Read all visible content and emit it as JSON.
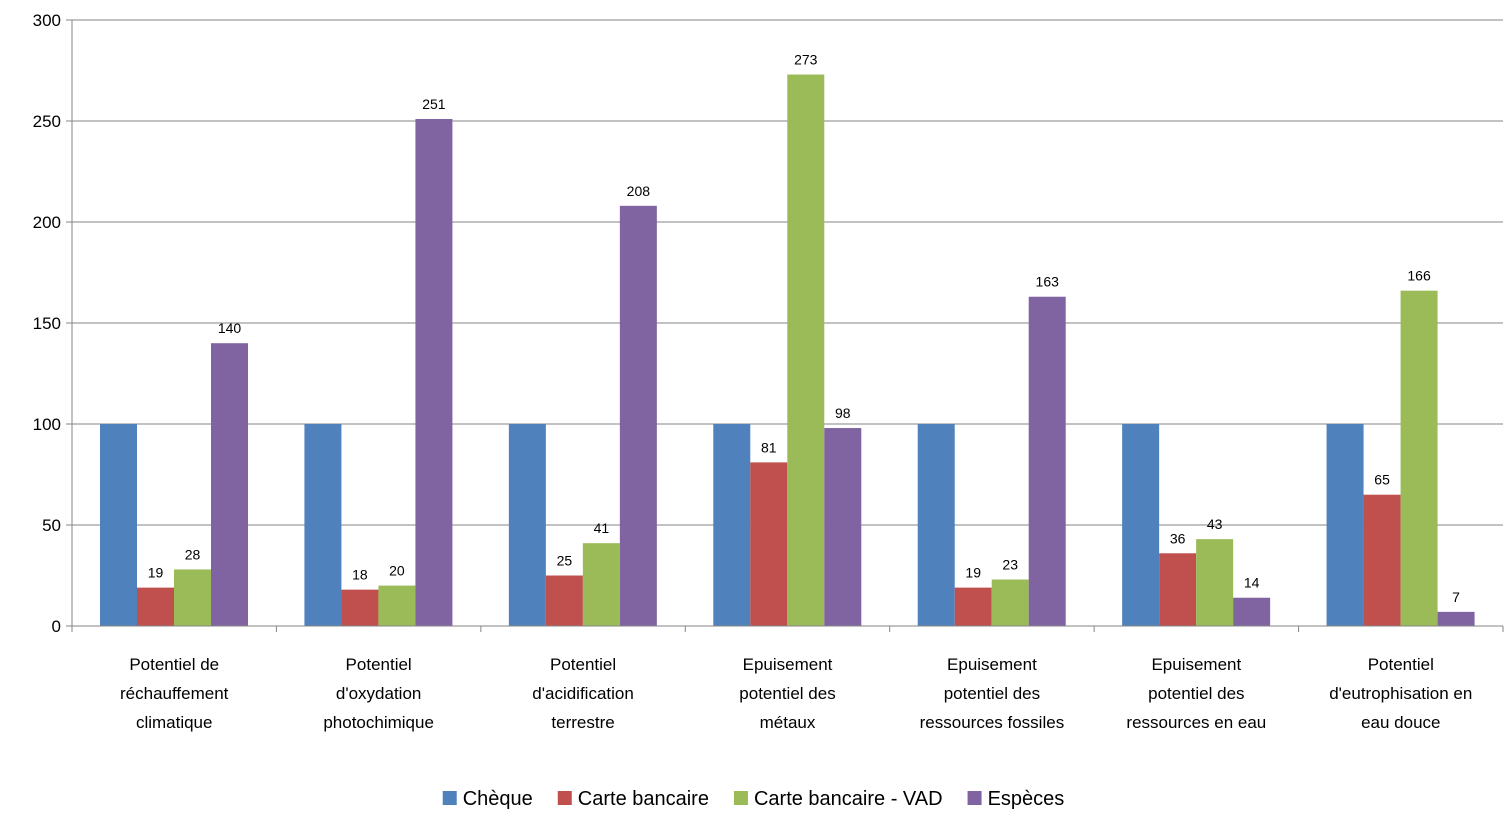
{
  "chart_data": {
    "type": "bar",
    "title": "",
    "xlabel": "",
    "ylabel": "",
    "ylim": [
      0,
      300
    ],
    "yticks": [
      0,
      50,
      100,
      150,
      200,
      250,
      300
    ],
    "grid": true,
    "legend_position": "bottom",
    "categories": [
      [
        "Potentiel de",
        "réchauffement",
        "climatique"
      ],
      [
        "Potentiel",
        "d'oxydation",
        "photochimique"
      ],
      [
        "Potentiel",
        "d'acidification",
        "terrestre"
      ],
      [
        "Epuisement",
        "potentiel des",
        "métaux"
      ],
      [
        "Epuisement",
        "potentiel des",
        "ressources fossiles"
      ],
      [
        "Epuisement",
        "potentiel des",
        "ressources en eau"
      ],
      [
        "Potentiel",
        "d'eutrophisation en",
        "eau douce"
      ]
    ],
    "series": [
      {
        "name": "Chèque",
        "color": "#4F81BD",
        "values": [
          100,
          100,
          100,
          100,
          100,
          100,
          100
        ],
        "show_labels": false
      },
      {
        "name": "Carte bancaire",
        "color": "#C0504D",
        "values": [
          19,
          18,
          25,
          81,
          19,
          36,
          65
        ],
        "show_labels": true
      },
      {
        "name": "Carte bancaire - VAD",
        "color": "#9BBB59",
        "values": [
          28,
          20,
          41,
          273,
          23,
          43,
          166
        ],
        "show_labels": true
      },
      {
        "name": "Espèces",
        "color": "#8064A2",
        "values": [
          140,
          251,
          208,
          98,
          163,
          14,
          7
        ],
        "show_labels": true
      }
    ]
  }
}
